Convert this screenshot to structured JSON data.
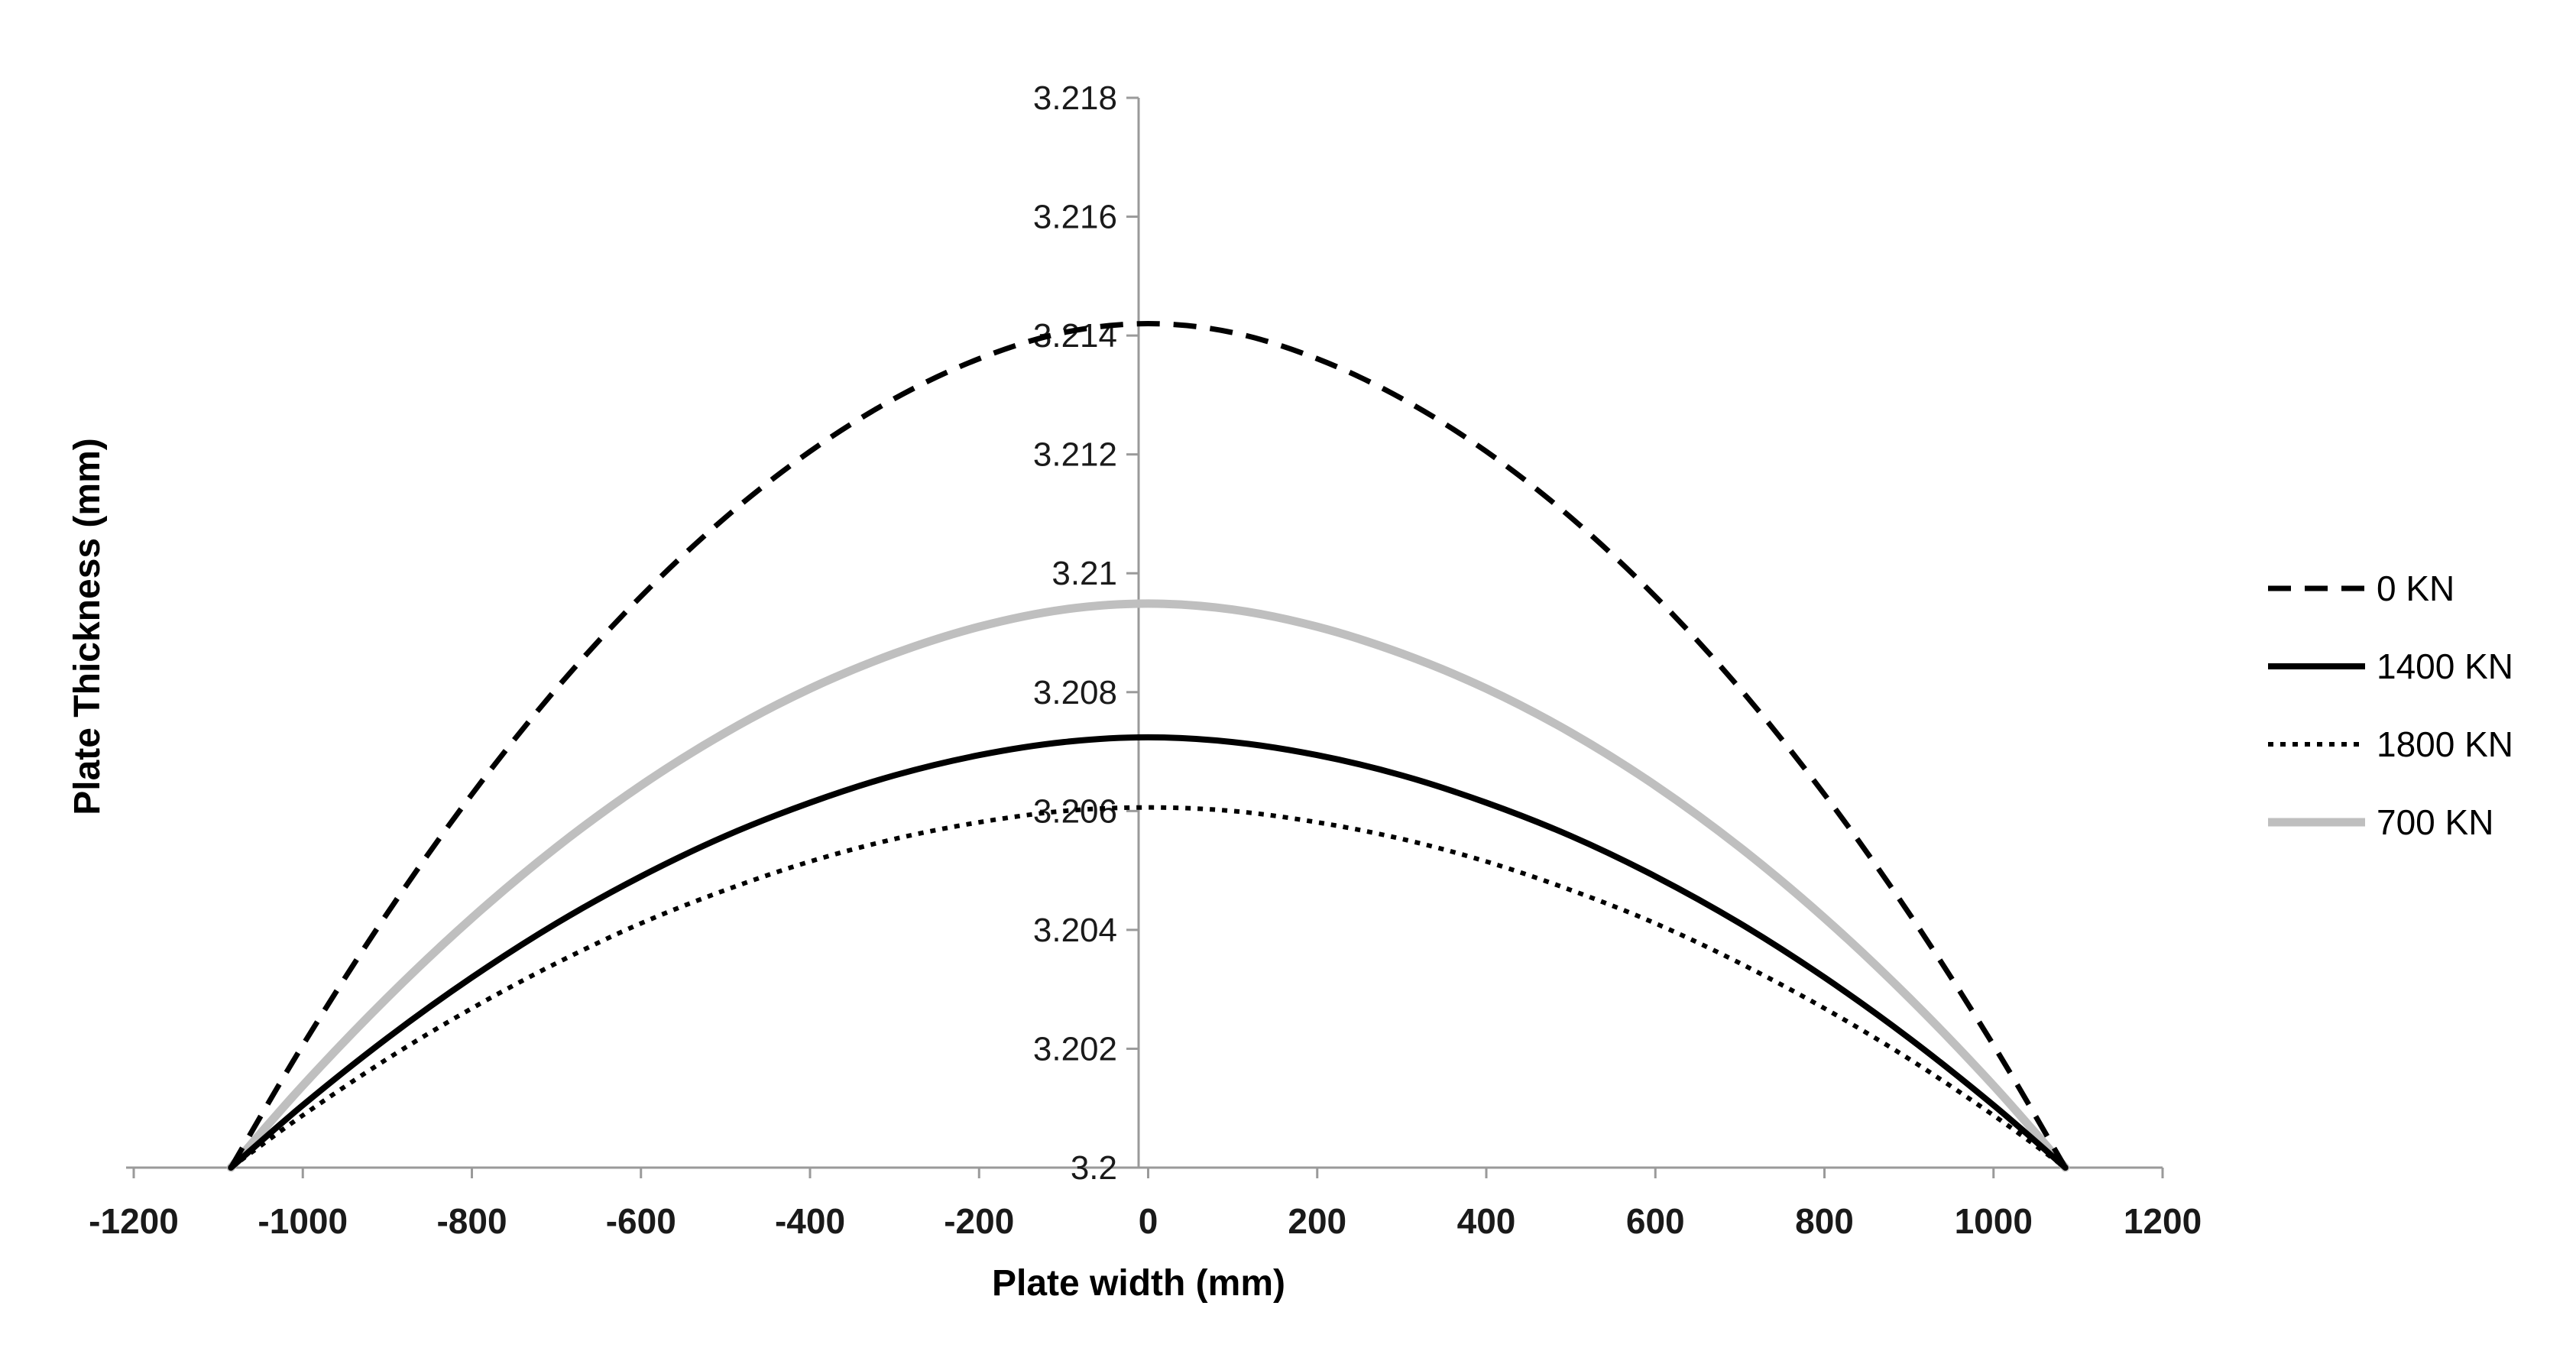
{
  "chart_data": {
    "type": "line",
    "title": "",
    "xlabel": "Plate width (mm)",
    "ylabel": "Plate Thickness (mm)",
    "xlim": [
      -1200,
      1200
    ],
    "ylim": [
      3.2,
      3.218
    ],
    "x_ticks": [
      -1200,
      -1000,
      -800,
      -600,
      -400,
      -200,
      0,
      200,
      400,
      600,
      800,
      1000,
      1200
    ],
    "x_tick_labels": [
      "-1200",
      "-1000",
      "-800",
      "-600",
      "-400",
      "-200",
      "0",
      "200",
      "400",
      "600",
      "800",
      "1000",
      "1200"
    ],
    "y_ticks": [
      3.2,
      3.202,
      3.204,
      3.206,
      3.208,
      3.21,
      3.212,
      3.214,
      3.216,
      3.218
    ],
    "y_tick_labels": [
      "3.2",
      "3.202",
      "3.204",
      "3.206",
      "3.208",
      "3.21",
      "3.212",
      "3.214",
      "3.216",
      "3.218"
    ],
    "grid": false,
    "legend_position": "right",
    "x": [
      -1085,
      -1000,
      -900,
      -800,
      -700,
      -600,
      -500,
      -400,
      -300,
      -200,
      -100,
      0,
      100,
      200,
      300,
      400,
      500,
      600,
      700,
      800,
      900,
      1000,
      1085
    ],
    "series": [
      {
        "name": "0 KN",
        "style": "dashed",
        "color": "#000000",
        "values": [
          3.2,
          3.20206,
          3.20428,
          3.20628,
          3.20806,
          3.20961,
          3.21094,
          3.21205,
          3.21294,
          3.21361,
          3.21405,
          3.2142,
          3.21405,
          3.21361,
          3.21294,
          3.21205,
          3.21094,
          3.20961,
          3.20806,
          3.20628,
          3.20428,
          3.20206,
          3.2
        ]
      },
      {
        "name": "1400 KN",
        "style": "solid",
        "color": "#000000",
        "values": [
          3.2,
          3.20105,
          3.20218,
          3.2032,
          3.20411,
          3.2049,
          3.20558,
          3.20614,
          3.2066,
          3.20694,
          3.20716,
          3.20724,
          3.20716,
          3.20694,
          3.2066,
          3.20614,
          3.20558,
          3.2049,
          3.20411,
          3.2032,
          3.20218,
          3.20105,
          3.2
        ]
      },
      {
        "name": "1800 KN",
        "style": "dotted",
        "color": "#000000",
        "values": [
          3.2,
          3.20088,
          3.20183,
          3.20268,
          3.20344,
          3.20411,
          3.20467,
          3.20515,
          3.20553,
          3.20581,
          3.206,
          3.20606,
          3.206,
          3.20581,
          3.20553,
          3.20515,
          3.20467,
          3.20411,
          3.20344,
          3.20268,
          3.20183,
          3.20088,
          3.2
        ]
      },
      {
        "name": "700 KN",
        "style": "solid",
        "color": "#bfbfbf",
        "values": [
          3.2,
          3.20138,
          3.20286,
          3.2042,
          3.20539,
          3.20643,
          3.20732,
          3.20806,
          3.20865,
          3.2091,
          3.20939,
          3.20949,
          3.20939,
          3.2091,
          3.20865,
          3.20806,
          3.20732,
          3.20643,
          3.20539,
          3.2042,
          3.20286,
          3.20138,
          3.2
        ]
      }
    ]
  }
}
